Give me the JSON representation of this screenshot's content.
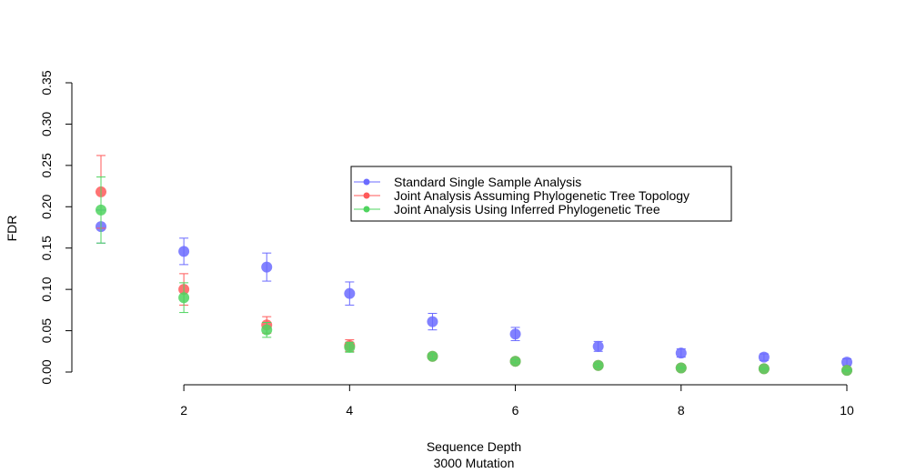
{
  "chart_data": {
    "type": "scatter",
    "title": "",
    "xlabel": "Sequence Depth",
    "xlabel_sub": "3000 Mutation",
    "ylabel": "FDR",
    "x_ticks": [
      2,
      4,
      6,
      8,
      10
    ],
    "y_ticks": [
      "0.00",
      "0.05",
      "0.10",
      "0.15",
      "0.20",
      "0.25",
      "0.30",
      "0.35"
    ],
    "xlim": [
      1,
      10
    ],
    "ylim": [
      0,
      0.35
    ],
    "grid": false,
    "legend_position": "top-right",
    "series": [
      {
        "name": "Standard Single Sample Analysis",
        "color": "#6b6bff",
        "x": [
          1,
          2,
          3,
          4,
          5,
          6,
          7,
          8,
          9,
          10
        ],
        "y": [
          0.176,
          0.146,
          0.127,
          0.095,
          0.061,
          0.046,
          0.031,
          0.023,
          0.018,
          0.012
        ],
        "err": [
          0.02,
          0.016,
          0.017,
          0.014,
          0.01,
          0.008,
          0.006,
          0.005,
          0.004,
          0.004
        ]
      },
      {
        "name": "Joint Analysis Assuming Phylogenetic Tree Topology",
        "color": "#ff5a5a",
        "x": [
          1,
          2,
          3,
          4,
          5,
          6,
          7,
          8,
          9,
          10
        ],
        "y": [
          0.218,
          0.1,
          0.057,
          0.032,
          0.019,
          0.013,
          0.008,
          0.005,
          0.004,
          0.002
        ],
        "err": [
          0.044,
          0.019,
          0.01,
          0.007,
          0.003,
          0.002,
          0.002,
          0.001,
          0.001,
          0.001
        ]
      },
      {
        "name": "Joint Analysis Using Inferred Phylogenetic Tree",
        "color": "#4fd45f",
        "x": [
          1,
          2,
          3,
          4,
          5,
          6,
          7,
          8,
          9,
          10
        ],
        "y": [
          0.196,
          0.09,
          0.051,
          0.03,
          0.019,
          0.013,
          0.008,
          0.005,
          0.004,
          0.002
        ],
        "err": [
          0.04,
          0.018,
          0.009,
          0.006,
          0.003,
          0.002,
          0.002,
          0.001,
          0.001,
          0.001
        ]
      }
    ]
  }
}
